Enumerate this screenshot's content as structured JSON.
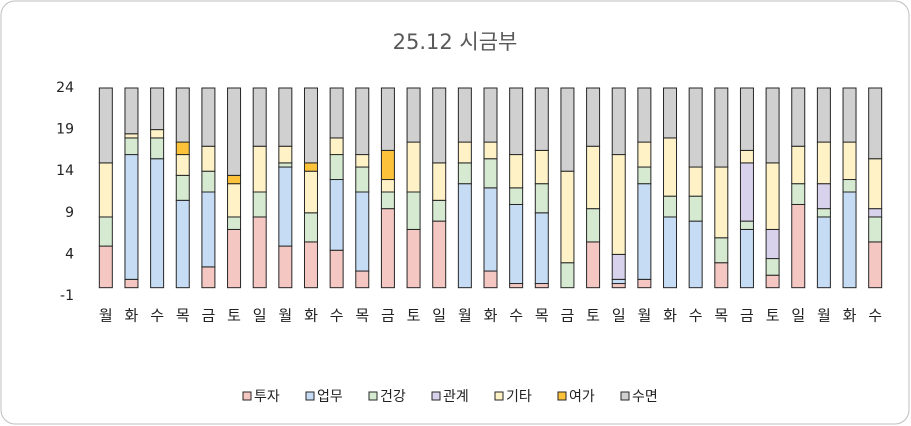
{
  "chart_data": {
    "type": "stacked_bar",
    "title": "25.12 시금부",
    "categories": [
      "월",
      "화",
      "수",
      "목",
      "금",
      "토",
      "일",
      "월",
      "화",
      "수",
      "목",
      "금",
      "토",
      "일",
      "월",
      "화",
      "수",
      "목",
      "금",
      "토",
      "일",
      "월",
      "화",
      "수",
      "목",
      "금",
      "토",
      "일",
      "월",
      "화",
      "수"
    ],
    "ylim": [
      -1,
      24
    ],
    "yticks": [
      -1,
      4,
      9,
      14,
      19,
      24
    ],
    "series": [
      {
        "name": "투자",
        "color": "#f4c7c3",
        "values": [
          5,
          1,
          0,
          0,
          2.5,
          7,
          8.5,
          5,
          5.5,
          4.5,
          2,
          9.5,
          7,
          8,
          0,
          2,
          0.5,
          0.5,
          0,
          5.5,
          0.5,
          1,
          0,
          0,
          3,
          0,
          1.5,
          10,
          0,
          0,
          5.5
        ]
      },
      {
        "name": "업무",
        "color": "#c5dcf4",
        "values": [
          0,
          15,
          15.5,
          10.5,
          9,
          0,
          0,
          9.5,
          0,
          8.5,
          9.5,
          0,
          0,
          0,
          12.5,
          10,
          9.5,
          8.5,
          0,
          0,
          0.5,
          11.5,
          8.5,
          8,
          0,
          7,
          0,
          0,
          8.5,
          11.5,
          0
        ]
      },
      {
        "name": "건강",
        "color": "#d5ead0",
        "values": [
          3.5,
          2,
          2.5,
          3,
          2.5,
          1.5,
          3,
          0.5,
          3.5,
          3,
          3,
          2,
          4.5,
          2.5,
          2.5,
          3.5,
          2,
          3.5,
          3,
          4,
          0,
          2,
          2.5,
          3,
          3,
          1,
          2,
          2.5,
          1,
          1.5,
          3
        ]
      },
      {
        "name": "관계",
        "color": "#d9d2ec",
        "values": [
          0,
          0,
          0,
          0,
          0,
          0,
          0,
          0,
          0,
          0,
          0,
          0,
          0,
          0,
          0,
          0,
          0,
          0,
          0,
          0,
          3,
          0,
          0,
          0,
          0,
          7,
          3.5,
          0,
          3,
          0,
          1
        ]
      },
      {
        "name": "기타",
        "color": "#fff2c6",
        "values": [
          6.5,
          0.5,
          1,
          2.5,
          3,
          4,
          5.5,
          2,
          5,
          2,
          1.5,
          1.5,
          6,
          4.5,
          2.5,
          2,
          4,
          4,
          11,
          7.5,
          12,
          3,
          7,
          3.5,
          8.5,
          1.5,
          8,
          4.5,
          5,
          4.5,
          6
        ]
      },
      {
        "name": "여가",
        "color": "#fcc33a",
        "values": [
          0,
          0,
          0,
          1.5,
          0,
          1,
          0,
          0,
          1,
          0,
          0,
          3.5,
          0,
          0,
          0,
          0,
          0,
          0,
          0,
          0,
          0,
          0,
          0,
          0,
          0,
          0,
          0,
          0,
          0,
          0,
          0
        ]
      },
      {
        "name": "수면",
        "color": "#d0d0d0",
        "values": [
          9,
          5.5,
          5,
          6.5,
          7,
          10.5,
          7,
          7,
          9,
          6,
          8,
          7.5,
          6.5,
          9,
          6.5,
          6.5,
          8,
          7.5,
          10,
          7,
          8,
          6.5,
          6,
          9.5,
          9.5,
          7.5,
          9,
          7,
          6.5,
          6.5,
          8.5
        ]
      }
    ]
  }
}
